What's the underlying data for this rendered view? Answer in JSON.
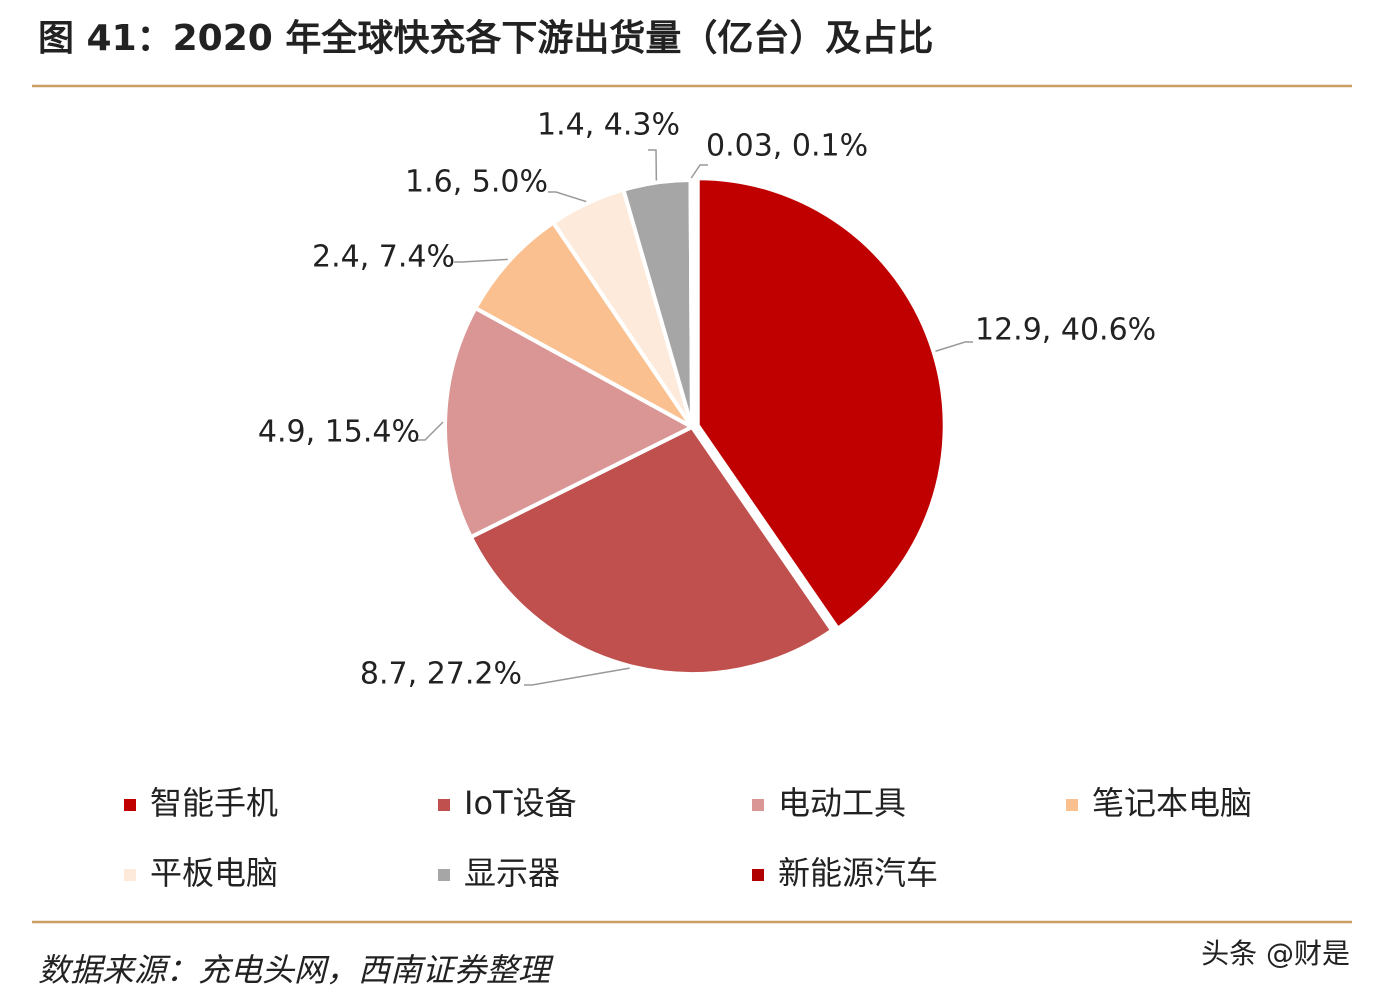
{
  "chart_data": {
    "type": "pie",
    "title": "图 41：2020 年全球快充各下游出货量（亿台）及占比",
    "categories": [
      "智能手机",
      "IoT设备",
      "电动工具",
      "笔记本电脑",
      "平板电脑",
      "显示器",
      "新能源汽车"
    ],
    "values": [
      12.9,
      8.7,
      4.9,
      2.4,
      1.6,
      1.4,
      0.03
    ],
    "value_labels": [
      "12.9, 40.6%",
      "8.7, 27.2%",
      "4.9, 15.4%",
      "2.4, 7.4%",
      "1.6, 5.0%",
      "1.4, 4.3%",
      "0.03, 0.1%"
    ],
    "colors": [
      "#c00000",
      "#c0504d",
      "#d99694",
      "#fac090",
      "#fdeada",
      "#a6a6a6",
      "#b00000"
    ],
    "legend": "bottom"
  },
  "source": "数据来源：充电头网，西南证券整理",
  "watermark": "头条 @财是"
}
